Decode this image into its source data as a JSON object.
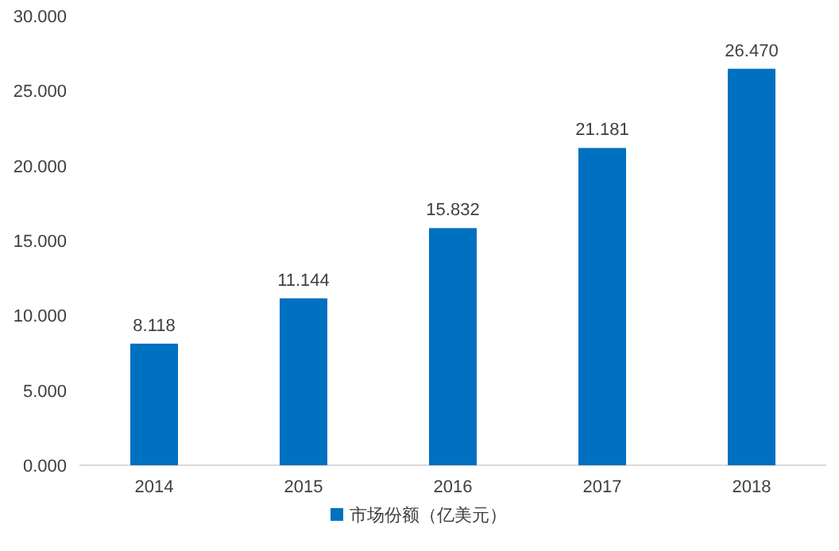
{
  "chart_data": {
    "type": "bar",
    "categories": [
      "2014",
      "2015",
      "2016",
      "2017",
      "2018"
    ],
    "series": [
      {
        "name": "市场份额（亿美元）",
        "color": "#0070c0",
        "values": [
          8.118,
          11.144,
          15.832,
          21.181,
          26.47
        ],
        "value_labels": [
          "8.118",
          "11.144",
          "15.832",
          "21.181",
          "26.470"
        ]
      }
    ],
    "ylim": [
      0,
      30
    ],
    "yticks": [
      {
        "value": 0,
        "label": "0.000"
      },
      {
        "value": 5,
        "label": "5.000"
      },
      {
        "value": 10,
        "label": "10.000"
      },
      {
        "value": 15,
        "label": "15.000"
      },
      {
        "value": 20,
        "label": "20.000"
      },
      {
        "value": 25,
        "label": "25.000"
      },
      {
        "value": 30,
        "label": "30.000"
      }
    ],
    "grid": false,
    "legend": "bottom"
  }
}
